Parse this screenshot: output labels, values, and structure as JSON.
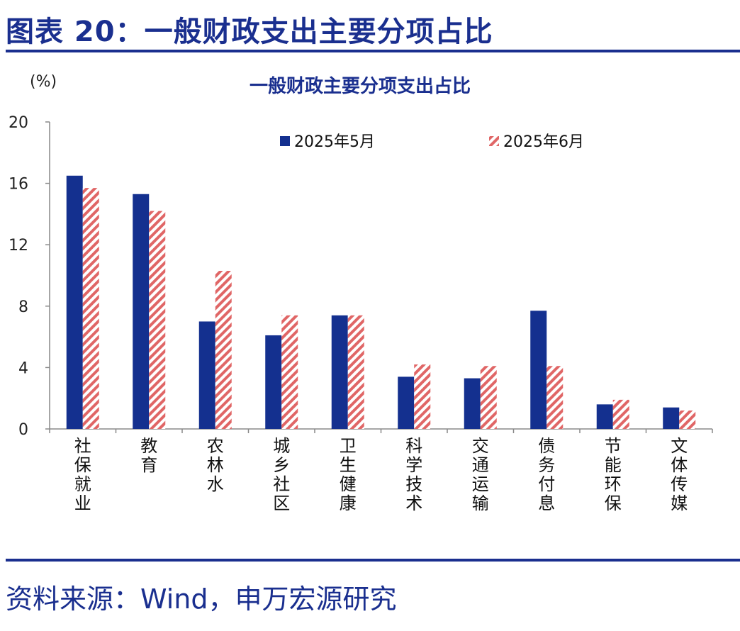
{
  "figure": {
    "title": "图表 20：一般财政支出主要分项占比",
    "source": "资料来源：Wind，申万宏源研究"
  },
  "chart_data": {
    "type": "bar",
    "title": "一般财政主要分项支出占比",
    "unit": "(%)",
    "categories": [
      "社保就业",
      "教育",
      "农林水",
      "城乡社区",
      "卫生健康",
      "科学技术",
      "交通运输",
      "债务付息",
      "节能环保",
      "文体传媒"
    ],
    "series": [
      {
        "name": "2025年5月",
        "color": "#14308f",
        "pattern": "solid",
        "values": [
          16.5,
          15.3,
          7.0,
          6.1,
          7.4,
          3.4,
          3.3,
          7.7,
          1.6,
          1.4
        ]
      },
      {
        "name": "2025年6月",
        "color": "#e06666",
        "pattern": "diagonal-stripe",
        "values": [
          15.7,
          14.2,
          10.3,
          7.4,
          7.4,
          4.2,
          4.1,
          4.1,
          1.9,
          1.2
        ]
      }
    ],
    "ylim": [
      0,
      20
    ],
    "yticks": [
      0,
      4,
      8,
      12,
      16,
      20
    ],
    "grid": false,
    "legend": "top"
  }
}
